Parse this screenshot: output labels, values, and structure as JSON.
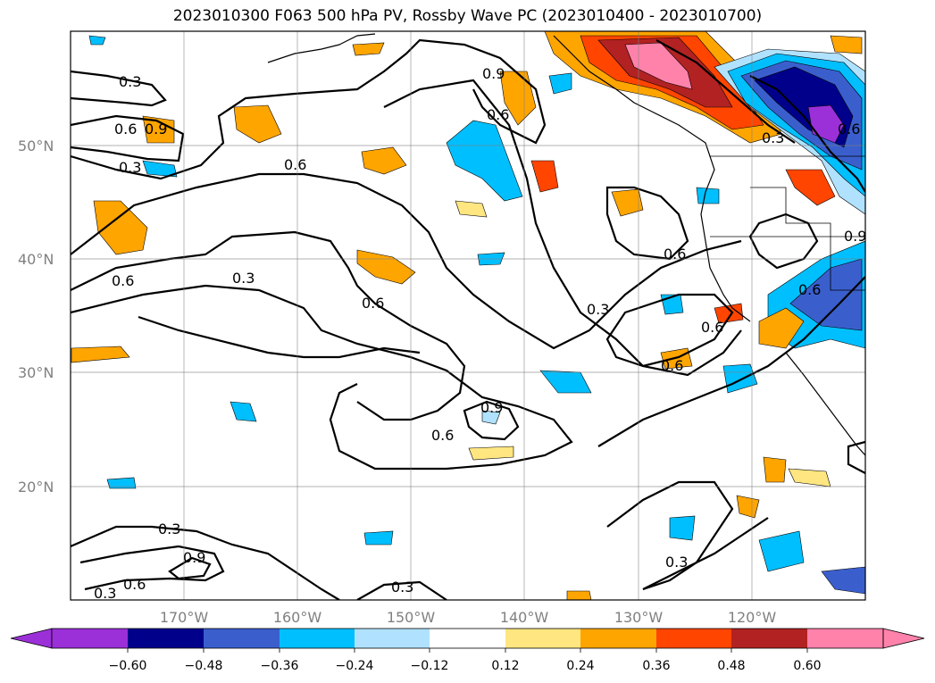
{
  "title": "2023010300 F063 500 hPa PV, Rossby Wave PC (2023010400 - 2023010700)",
  "lat_ticks": [
    "50°N",
    "40°N",
    "30°N",
    "20°N"
  ],
  "lon_ticks": [
    "170°W",
    "160°W",
    "150°W",
    "140°W",
    "130°W",
    "120°W"
  ],
  "colorbar": {
    "tick_labels": [
      "−0.60",
      "−0.48",
      "−0.36",
      "−0.24",
      "−0.12",
      "0.12",
      "0.24",
      "0.36",
      "0.48",
      "0.60"
    ],
    "colors": [
      "#9b30d8",
      "#00008b",
      "#3a5fcd",
      "#00bfff",
      "#b0e2ff",
      "#ffffff",
      "#ffe680",
      "#ffa500",
      "#ff4500",
      "#b22222",
      "#ff82ab",
      "#ff82ab"
    ]
  },
  "contour_labels": [
    "0.3",
    "0.9",
    "0.6",
    "0.9",
    "0.6",
    "0.3",
    "0.6",
    "0.6",
    "0.3",
    "0.6",
    "0.6",
    "0.3",
    "0.6",
    "0.6",
    "0.3",
    "0.9",
    "0.6",
    "0.3",
    "0.9",
    "0.6",
    "0.3",
    "0.3",
    "0.3",
    "0.6",
    "0.6",
    "0.9"
  ]
}
